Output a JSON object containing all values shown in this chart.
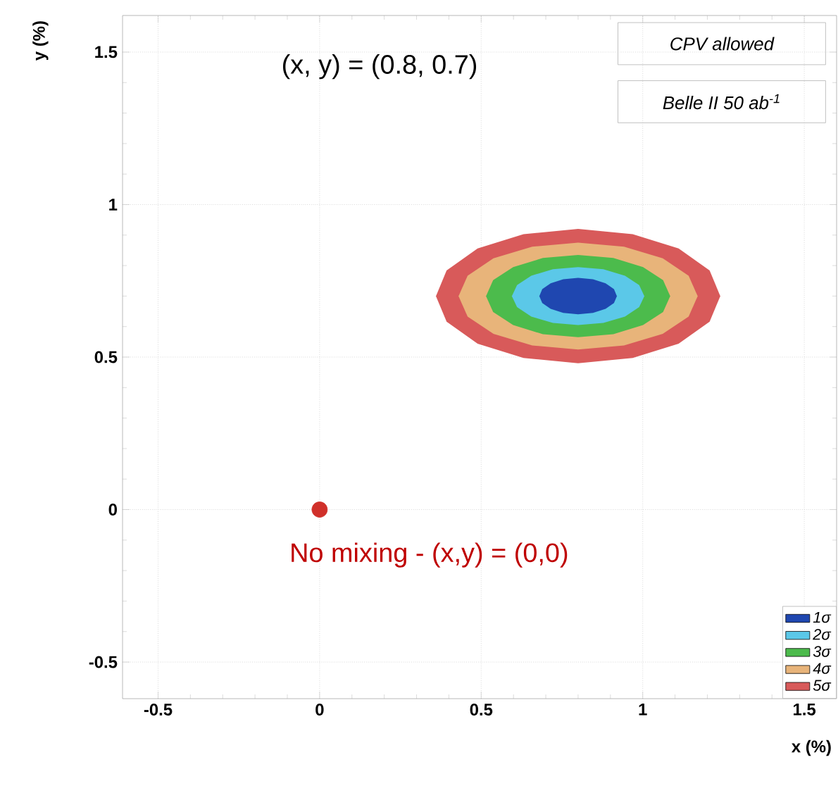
{
  "chart_data": {
    "type": "area",
    "xlabel": "x (%)",
    "ylabel": "y (%)",
    "xlim": [
      -0.61,
      1.6
    ],
    "ylim": [
      -0.62,
      1.62
    ],
    "xticks": [
      -0.5,
      0,
      0.5,
      1,
      1.5
    ],
    "yticks": [
      -0.5,
      0,
      0.5,
      1,
      1.5
    ],
    "grid": true,
    "legend": "bottom right",
    "annotations": [
      "(x, y) = (0.8, 0.7)",
      {
        "text": "No mixing - (x,y) = (0,0)",
        "x": 0,
        "y": 0
      },
      "CPV allowed",
      "Belle II 50 ab$^{-1}$"
    ],
    "series": [
      {
        "name": "1σ",
        "color": "#1f47b0",
        "x": [
          0.92,
          0.911,
          0.885,
          0.846,
          0.8,
          0.754,
          0.715,
          0.689,
          0.68,
          0.689,
          0.715,
          0.754,
          0.8,
          0.846,
          0.885,
          0.911
        ],
        "values": [
          0.7,
          0.723,
          0.742,
          0.755,
          0.76,
          0.755,
          0.742,
          0.723,
          0.7,
          0.677,
          0.658,
          0.645,
          0.64,
          0.645,
          0.658,
          0.677
        ]
      },
      {
        "name": "2σ",
        "color": "#5bc8e8",
        "x": [
          1.005,
          0.989,
          0.945,
          0.878,
          0.8,
          0.722,
          0.655,
          0.611,
          0.595,
          0.611,
          0.655,
          0.722,
          0.8,
          0.878,
          0.945,
          0.989
        ],
        "values": [
          0.7,
          0.736,
          0.767,
          0.788,
          0.795,
          0.788,
          0.767,
          0.736,
          0.7,
          0.664,
          0.633,
          0.612,
          0.605,
          0.612,
          0.633,
          0.664
        ]
      },
      {
        "name": "3σ",
        "color": "#4cbb4c",
        "x": [
          1.085,
          1.063,
          1.001,
          0.909,
          0.8,
          0.691,
          0.599,
          0.537,
          0.515,
          0.537,
          0.599,
          0.691,
          0.8,
          0.909,
          1.001,
          1.063
        ],
        "values": [
          0.7,
          0.752,
          0.795,
          0.825,
          0.835,
          0.825,
          0.795,
          0.752,
          0.7,
          0.648,
          0.605,
          0.575,
          0.565,
          0.575,
          0.605,
          0.648
        ]
      },
      {
        "name": "4σ",
        "color": "#e8b47a",
        "x": [
          1.17,
          1.142,
          1.062,
          0.942,
          0.8,
          0.658,
          0.538,
          0.458,
          0.43,
          0.458,
          0.538,
          0.658,
          0.8,
          0.942,
          1.062,
          1.142
        ],
        "values": [
          0.7,
          0.767,
          0.824,
          0.862,
          0.875,
          0.862,
          0.824,
          0.767,
          0.7,
          0.633,
          0.576,
          0.538,
          0.525,
          0.538,
          0.576,
          0.633
        ]
      },
      {
        "name": "5σ",
        "color": "#d85a5a",
        "x": [
          1.24,
          1.207,
          1.111,
          0.969,
          0.8,
          0.631,
          0.489,
          0.393,
          0.36,
          0.393,
          0.489,
          0.631,
          0.8,
          0.969,
          1.111,
          1.207
        ],
        "values": [
          0.7,
          0.784,
          0.856,
          0.903,
          0.92,
          0.903,
          0.856,
          0.784,
          0.7,
          0.616,
          0.544,
          0.497,
          0.48,
          0.497,
          0.544,
          0.616
        ]
      },
      {
        "type": "scatter",
        "color": "#d0302a",
        "marker": "circle",
        "x": [
          0
        ],
        "values": [
          0
        ]
      }
    ]
  }
}
